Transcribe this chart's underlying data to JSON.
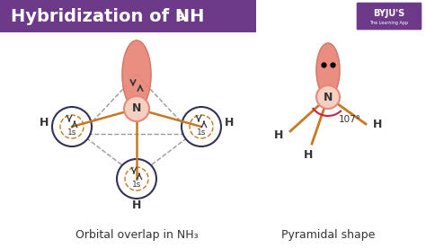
{
  "bg_color": "#ffffff",
  "header_color": "#6d3a8a",
  "header_text": "Hybridization of NH",
  "header_sub": "3",
  "title_fontsize": 16,
  "orbital_color": "#e8887a",
  "orbital_light": "#f0b0a0",
  "node_color": "#f5d0c0",
  "node_stroke": "#e8887a",
  "bond_color": "#c87820",
  "dashed_color": "#999999",
  "circle_color": "#333355",
  "label1": "Orbital overlap in NH₃",
  "label2": "Pyramidal shape",
  "n_label": "N",
  "h_label": "H",
  "angle_label": "107°",
  "label_fontsize": 10,
  "byju_color": "#6d3a8a"
}
